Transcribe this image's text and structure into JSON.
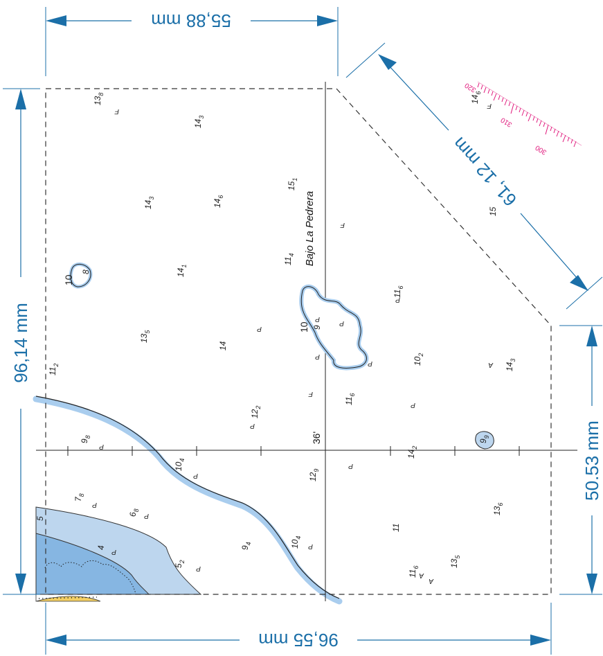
{
  "dimensions": {
    "top": "55,88 mm",
    "bottom": "96,55 mm",
    "left": "96,14 mm",
    "right_lower": "50.53 mm",
    "diagonal": "61, 12 mm"
  },
  "place_name": "Bajo La Pedrera",
  "latitude_label": "36'",
  "rose_labels": [
    "320",
    "310",
    "300"
  ],
  "soundings": [
    {
      "main": "13",
      "sub": "8"
    },
    {
      "main": "14",
      "sub": "3"
    },
    {
      "main": "14",
      "sub": "6"
    },
    {
      "main": "15",
      "sub": "1"
    },
    {
      "main": "14",
      "sub": "3"
    },
    {
      "main": "14",
      "sub": "6"
    },
    {
      "main": "15",
      "sub": ""
    },
    {
      "main": "14",
      "sub": "1"
    },
    {
      "main": "11",
      "sub": "4"
    },
    {
      "main": "11",
      "sub": "6"
    },
    {
      "main": "13",
      "sub": "5"
    },
    {
      "main": "14",
      "sub": ""
    },
    {
      "main": "10",
      "sub": "2"
    },
    {
      "main": "14",
      "sub": "3"
    },
    {
      "main": "11",
      "sub": "2"
    },
    {
      "main": "12",
      "sub": "2"
    },
    {
      "main": "11",
      "sub": "6"
    },
    {
      "main": "9",
      "sub": "8"
    },
    {
      "main": "14",
      "sub": "2"
    },
    {
      "main": "10",
      "sub": "4"
    },
    {
      "main": "12",
      "sub": "9"
    },
    {
      "main": "7",
      "sub": "8"
    },
    {
      "main": "6",
      "sub": "8"
    },
    {
      "main": "4",
      "sub": ""
    },
    {
      "main": "9",
      "sub": "4"
    },
    {
      "main": "10",
      "sub": "4"
    },
    {
      "main": "5",
      "sub": "2"
    },
    {
      "main": "11",
      "sub": ""
    },
    {
      "main": "13",
      "sub": "6"
    },
    {
      "main": "11",
      "sub": "6"
    },
    {
      "main": "13",
      "sub": "5"
    },
    {
      "main": "10",
      "sub": ""
    },
    {
      "main": "9",
      "sub": ""
    },
    {
      "main": "10",
      "sub": ""
    },
    {
      "main": "8",
      "sub": ""
    },
    {
      "main": "9",
      "sub": "9"
    },
    {
      "main": "5",
      "sub": ""
    }
  ],
  "bottom_symbols": [
    "F",
    "F",
    "F",
    "F",
    "P",
    "P",
    "P",
    "P",
    "P",
    "P",
    "P",
    "P",
    "P",
    "P",
    "P",
    "P",
    "P",
    "P",
    "P",
    "P",
    "A",
    "A",
    "A"
  ],
  "colors": {
    "dimension": "#1b6fa8",
    "shallow_water": "#bdd6ee",
    "deep_shoal": "#86b6e2",
    "coastline": "#a9cdee",
    "compass_rose": "#e0157a",
    "foreshore": "#f3cf63"
  }
}
